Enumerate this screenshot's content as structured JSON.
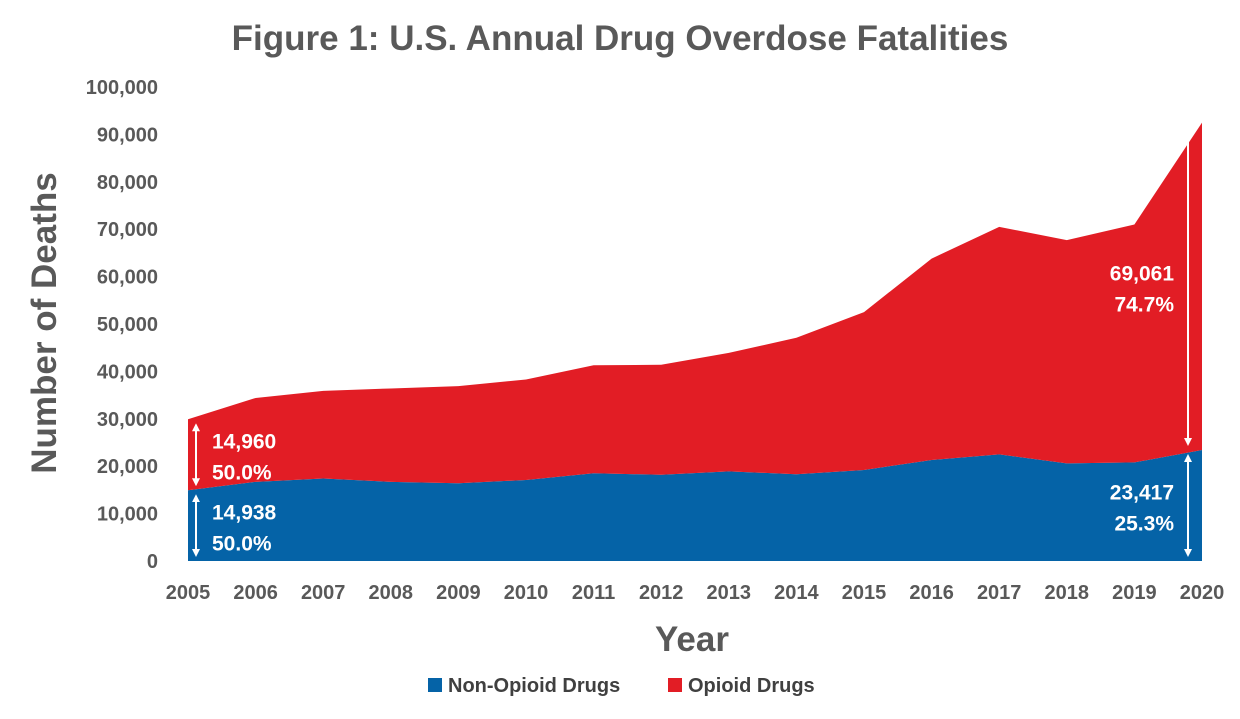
{
  "chart_data": {
    "type": "area",
    "stacked": true,
    "title": "Figure 1: U.S. Annual Drug Overdose Fatalities",
    "xlabel": "Year",
    "ylabel": "Number of Deaths",
    "x": [
      2005,
      2006,
      2007,
      2008,
      2009,
      2010,
      2011,
      2012,
      2013,
      2014,
      2015,
      2016,
      2017,
      2018,
      2019,
      2020
    ],
    "ylim": [
      0,
      100000
    ],
    "yticks": [
      0,
      10000,
      20000,
      30000,
      40000,
      50000,
      60000,
      70000,
      80000,
      90000,
      100000
    ],
    "ytick_labels": [
      "0",
      "10,000",
      "20,000",
      "30,000",
      "40,000",
      "50,000",
      "60,000",
      "70,000",
      "80,000",
      "90,000",
      "100,000"
    ],
    "grid": false,
    "legend_position": "bottom",
    "series": [
      {
        "name": "Non-Opioid Drugs",
        "color": "#0563a7",
        "values": [
          14938,
          16700,
          17400,
          16700,
          16400,
          17100,
          18500,
          18200,
          18900,
          18300,
          19200,
          21300,
          22500,
          20600,
          20800,
          23417
        ]
      },
      {
        "name": "Opioid Drugs",
        "color": "#e21d25",
        "values": [
          14960,
          17700,
          18500,
          19700,
          20500,
          21200,
          22800,
          23200,
          25000,
          28800,
          33300,
          42500,
          48000,
          47100,
          50200,
          69061
        ]
      }
    ],
    "annotations": [
      {
        "series": "Opioid Drugs",
        "year": 2005,
        "value": "14,960",
        "percent": "50.0%",
        "side": "right"
      },
      {
        "series": "Non-Opioid Drugs",
        "year": 2005,
        "value": "14,938",
        "percent": "50.0%",
        "side": "right"
      },
      {
        "series": "Opioid Drugs",
        "year": 2020,
        "value": "69,061",
        "percent": "74.7%",
        "side": "left"
      },
      {
        "series": "Non-Opioid Drugs",
        "year": 2020,
        "value": "23,417",
        "percent": "25.3%",
        "side": "left"
      }
    ]
  }
}
